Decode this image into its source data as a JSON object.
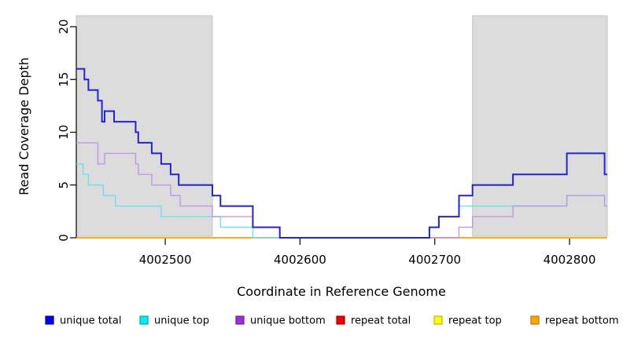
{
  "chart_data": {
    "type": "line",
    "step": true,
    "title": "",
    "xlabel": "Coordinate in Reference Genome",
    "ylabel": "Read Coverage Depth",
    "xlim": [
      4002434,
      4002828
    ],
    "ylim": [
      0,
      21
    ],
    "x_ticks": [
      4002500,
      4002600,
      4002700,
      4002800
    ],
    "y_ticks": [
      0,
      5,
      10,
      15,
      20
    ],
    "grid": false,
    "legend_position": "bottom",
    "highlight_regions": [
      {
        "name": "left-flank-highlight",
        "x0": 4002434,
        "x1": 4002535,
        "color": "#dcdcdc",
        "border": "#c4c4c4"
      },
      {
        "name": "right-flank-highlight",
        "x0": 4002728,
        "x1": 4002828,
        "color": "#dcdcdc",
        "border": "#c4c4c4"
      }
    ],
    "series": [
      {
        "name": "repeat total",
        "line_color": "#EE0000",
        "width": 1.4,
        "opacity": 1,
        "points": [
          [
            4002434,
            0
          ]
        ]
      },
      {
        "name": "repeat top",
        "line_color": "#FFFF00",
        "width": 1.4,
        "opacity": 1,
        "points": [
          [
            4002434,
            0
          ]
        ]
      },
      {
        "name": "repeat bottom",
        "line_color": "#FFA500",
        "width": 1.6,
        "opacity": 1,
        "points": [
          [
            4002434,
            0
          ]
        ]
      },
      {
        "name": "unique top",
        "line_color": "#62e2ec",
        "width": 1.4,
        "opacity": 0.95,
        "points": [
          [
            4002434,
            7
          ],
          [
            4002439,
            6
          ],
          [
            4002443,
            5
          ],
          [
            4002454,
            4
          ],
          [
            4002463,
            3
          ],
          [
            4002497,
            2
          ],
          [
            4002541,
            1
          ],
          [
            4002565,
            0
          ],
          [
            4002696,
            1
          ],
          [
            4002703,
            2
          ],
          [
            4002718,
            3
          ],
          [
            4002798,
            4
          ],
          [
            4002826,
            3
          ]
        ]
      },
      {
        "name": "unique bottom",
        "line_color": "#bf94e4",
        "width": 1.4,
        "opacity": 0.95,
        "points": [
          [
            4002434,
            9
          ],
          [
            4002450,
            7
          ],
          [
            4002455,
            8
          ],
          [
            4002478,
            7
          ],
          [
            4002480,
            6
          ],
          [
            4002490,
            5
          ],
          [
            4002504,
            4
          ],
          [
            4002511,
            3
          ],
          [
            4002535,
            2
          ],
          [
            4002565,
            1
          ],
          [
            4002585,
            0
          ],
          [
            4002718,
            1
          ],
          [
            4002728,
            2
          ],
          [
            4002758,
            3
          ],
          [
            4002798,
            4
          ],
          [
            4002826,
            3
          ]
        ]
      },
      {
        "name": "unique total",
        "line_color": "#2323d8",
        "width": 2,
        "opacity": 1,
        "points": [
          [
            4002434,
            16
          ],
          [
            4002440,
            15
          ],
          [
            4002443,
            14
          ],
          [
            4002450,
            13
          ],
          [
            4002453,
            11
          ],
          [
            4002455,
            12
          ],
          [
            4002462,
            11
          ],
          [
            4002478,
            10
          ],
          [
            4002480,
            9
          ],
          [
            4002490,
            8
          ],
          [
            4002497,
            7
          ],
          [
            4002504,
            6
          ],
          [
            4002510,
            5
          ],
          [
            4002535,
            4
          ],
          [
            4002541,
            3
          ],
          [
            4002565,
            1
          ],
          [
            4002585,
            0
          ],
          [
            4002696,
            1
          ],
          [
            4002703,
            2
          ],
          [
            4002718,
            4
          ],
          [
            4002728,
            5
          ],
          [
            4002758,
            6
          ],
          [
            4002798,
            8
          ],
          [
            4002826,
            6
          ]
        ]
      }
    ],
    "legend": [
      {
        "label": "unique total",
        "swatch": "#0000EE",
        "swatch_border": "#0000A8"
      },
      {
        "label": "unique top",
        "swatch": "#00EEEE",
        "swatch_border": "#00A8B4"
      },
      {
        "label": "unique bottom",
        "swatch": "#9B30D5",
        "swatch_border": "#6A1F96"
      },
      {
        "label": "repeat total",
        "swatch": "#EE0000",
        "swatch_border": "#A40000"
      },
      {
        "label": "repeat top",
        "swatch": "#FFFF00",
        "swatch_border": "#C2B200"
      },
      {
        "label": "repeat bottom",
        "swatch": "#FFA500",
        "swatch_border": "#C27A00"
      }
    ]
  }
}
